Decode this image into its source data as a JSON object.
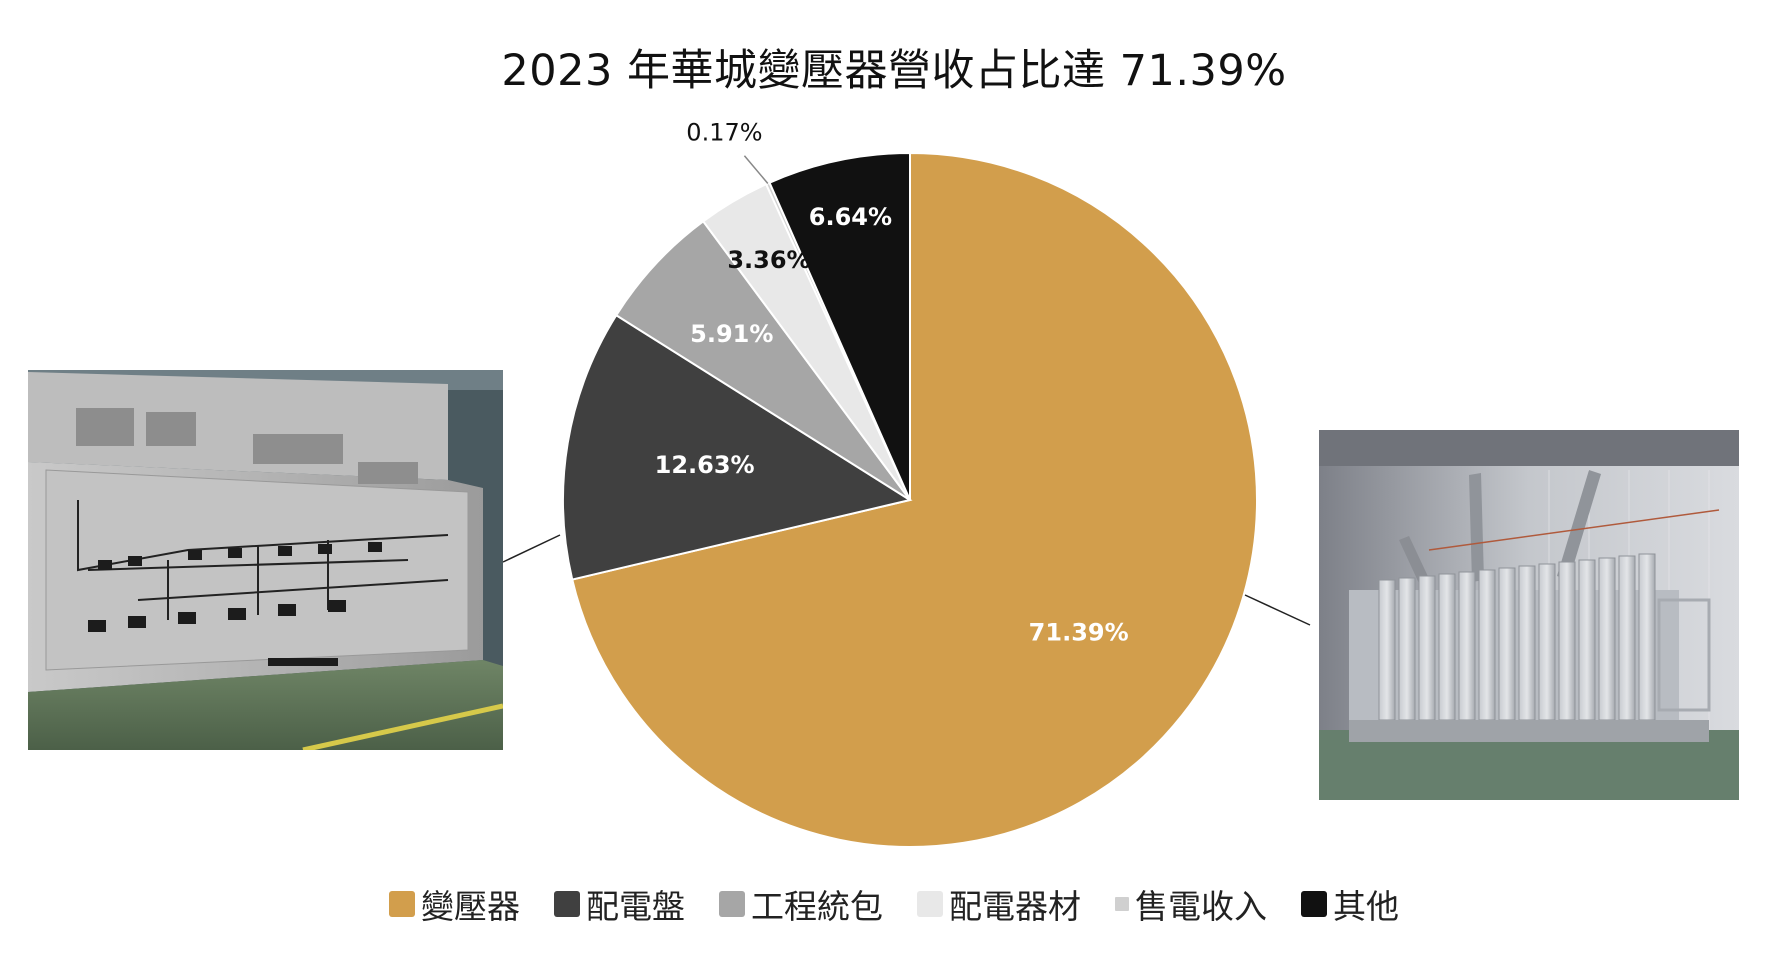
{
  "chart_data": {
    "type": "pie",
    "title": "2023 年華城變壓器營收占比達 71.39%",
    "categories": [
      "變壓器",
      "配電盤",
      "工程統包",
      "配電器材",
      "售電收入",
      "其他"
    ],
    "values": [
      71.39,
      12.63,
      5.91,
      3.36,
      0.17,
      6.64
    ],
    "labels": [
      "71.39%",
      "12.63%",
      "5.91%",
      "3.36%",
      "0.17%",
      "6.64%"
    ],
    "colors": [
      "#D29E4C",
      "#404040",
      "#A6A6A6",
      "#E8E8E8",
      "#D0D0D0",
      "#111111"
    ],
    "label_colors": [
      "#ffffff",
      "#ffffff",
      "#ffffff",
      "#111111",
      "#111111",
      "#ffffff"
    ],
    "legend_position": "bottom",
    "start_angle": "12 o'clock, clockwise"
  },
  "images": {
    "left": {
      "icon": "switchboard-control-panel-photo"
    },
    "right": {
      "icon": "power-transformer-photo"
    }
  }
}
